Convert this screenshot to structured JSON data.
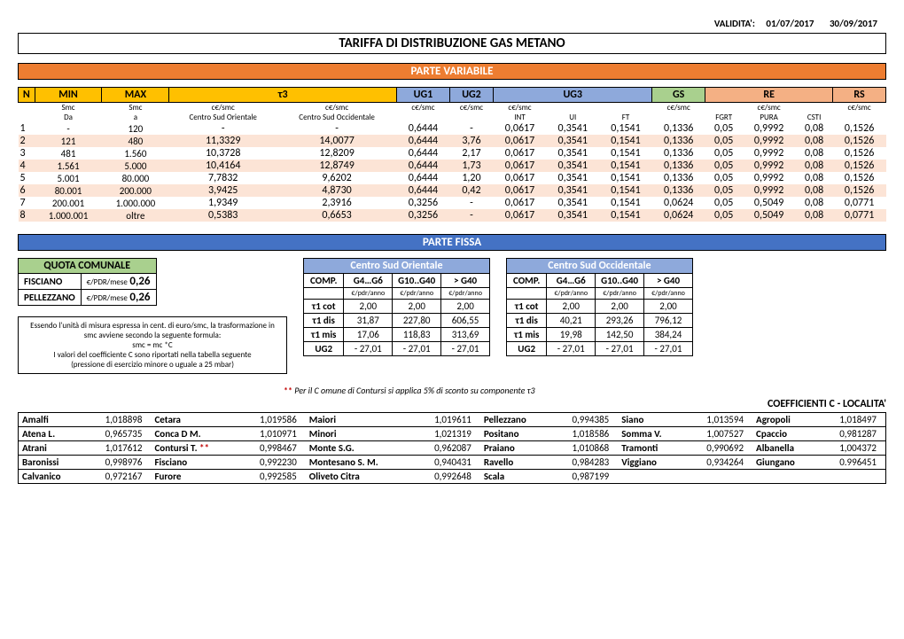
{
  "validita": {
    "label": "VALIDITA':",
    "from": "01/07/2017",
    "to": "30/09/2017"
  },
  "title": "TARIFFA DI DISTRIBUZIONE GAS METANO",
  "parte_variabile": {
    "heading": "PARTE VARIABILE",
    "cols": [
      "N",
      "MIN",
      "MAX",
      "τ3",
      "",
      "UG1",
      "UG2",
      "UG3",
      "",
      "",
      "GS",
      "",
      "RE",
      "",
      "RS"
    ],
    "units_row": [
      "",
      "Smc",
      "Smc",
      "c€/smc",
      "c€/smc",
      "c€/smc",
      "c€/smc",
      "c€/smc",
      "",
      "",
      "c€/smc",
      "",
      "c€/smc",
      "",
      "c€/smc"
    ],
    "sub_row": [
      "",
      "Da",
      "a",
      "Centro Sud Orientale",
      "Centro Sud Occidentale",
      "",
      "",
      "INT",
      "UI",
      "FT",
      "",
      "FGRT",
      "PURA",
      "CSTI",
      ""
    ],
    "rows": [
      {
        "n": "1",
        "min": "-",
        "max": "120",
        "t3a": "-",
        "t3b": "-",
        "ug1": "0,6444",
        "ug2": "-",
        "int": "0,0617",
        "ui": "0,3541",
        "ft": "0,1541",
        "gs": "0,1336",
        "fgrt": "0,05",
        "pura": "0,9992",
        "csti": "0,08",
        "rs": "0,1526"
      },
      {
        "n": "2",
        "min": "121",
        "max": "480",
        "t3a": "11,3329",
        "t3b": "14,0077",
        "ug1": "0,6444",
        "ug2": "3,76",
        "int": "0,0617",
        "ui": "0,3541",
        "ft": "0,1541",
        "gs": "0,1336",
        "fgrt": "0,05",
        "pura": "0,9992",
        "csti": "0,08",
        "rs": "0,1526"
      },
      {
        "n": "3",
        "min": "481",
        "max": "1.560",
        "t3a": "10,3728",
        "t3b": "12,8209",
        "ug1": "0,6444",
        "ug2": "2,17",
        "int": "0,0617",
        "ui": "0,3541",
        "ft": "0,1541",
        "gs": "0,1336",
        "fgrt": "0,05",
        "pura": "0,9992",
        "csti": "0,08",
        "rs": "0,1526"
      },
      {
        "n": "4",
        "min": "1.561",
        "max": "5.000",
        "t3a": "10,4164",
        "t3b": "12,8749",
        "ug1": "0,6444",
        "ug2": "1,73",
        "int": "0,0617",
        "ui": "0,3541",
        "ft": "0,1541",
        "gs": "0,1336",
        "fgrt": "0,05",
        "pura": "0,9992",
        "csti": "0,08",
        "rs": "0,1526"
      },
      {
        "n": "5",
        "min": "5.001",
        "max": "80.000",
        "t3a": "7,7832",
        "t3b": "9,6202",
        "ug1": "0,6444",
        "ug2": "1,20",
        "int": "0,0617",
        "ui": "0,3541",
        "ft": "0,1541",
        "gs": "0,1336",
        "fgrt": "0,05",
        "pura": "0,9992",
        "csti": "0,08",
        "rs": "0,1526"
      },
      {
        "n": "6",
        "min": "80.001",
        "max": "200.000",
        "t3a": "3,9425",
        "t3b": "4,8730",
        "ug1": "0,6444",
        "ug2": "0,42",
        "int": "0,0617",
        "ui": "0,3541",
        "ft": "0,1541",
        "gs": "0,1336",
        "fgrt": "0,05",
        "pura": "0,9992",
        "csti": "0,08",
        "rs": "0,1526"
      },
      {
        "n": "7",
        "min": "200.001",
        "max": "1.000.000",
        "t3a": "1,9349",
        "t3b": "2,3916",
        "ug1": "0,3256",
        "ug2": "-",
        "int": "0,0617",
        "ui": "0,3541",
        "ft": "0,1541",
        "gs": "0,0624",
        "fgrt": "0,05",
        "pura": "0,5049",
        "csti": "0,08",
        "rs": "0,0771"
      },
      {
        "n": "8",
        "min": "1.000.001",
        "max": "oltre",
        "t3a": "0,5383",
        "t3b": "0,6653",
        "ug1": "0,3256",
        "ug2": "-",
        "int": "0,0617",
        "ui": "0,3541",
        "ft": "0,1541",
        "gs": "0,0624",
        "fgrt": "0,05",
        "pura": "0,5049",
        "csti": "0,08",
        "rs": "0,0771"
      }
    ]
  },
  "parte_fissa": {
    "heading": "PARTE FISSA",
    "quota": {
      "title": "QUOTA COMUNALE",
      "rows": [
        {
          "name": "FISCIANO",
          "unit": "€/PDR/mese",
          "val": "0,26"
        },
        {
          "name": "PELLEZZANO",
          "unit": "€/PDR/mese",
          "val": "0,26"
        }
      ]
    },
    "note": "Essendo l'unità di misura espressa in cent. di euro/smc, la trasformazione in smc avviene secondo la seguente formula:\nsmc = mc *C\nI valori del coefficiente C sono riportati nella tabella seguente\n(pressione di esercizio minore o uguale a 25 mbar)",
    "cso_title": "Centro Sud Orientale",
    "cso2_title": "Centro Sud Occidentale",
    "comp_hdr": [
      "COMP.",
      "G4…G6",
      "G10..G40",
      "> G40"
    ],
    "comp_unit": "€/pdr/anno",
    "cso_rows": [
      {
        "lab": "τ1 cot",
        "a": "2,00",
        "b": "2,00",
        "c": "2,00"
      },
      {
        "lab": "τ1 dis",
        "a": "31,87",
        "b": "227,80",
        "c": "606,55"
      },
      {
        "lab": "τ1 mis",
        "a": "17,06",
        "b": "118,83",
        "c": "313,69"
      },
      {
        "lab": "UG2",
        "a": "-    27,01",
        "b": "-    27,01",
        "c": "-    27,01"
      }
    ],
    "cso2_rows": [
      {
        "lab": "τ1 cot",
        "a": "2,00",
        "b": "2,00",
        "c": "2,00"
      },
      {
        "lab": "τ1 dis",
        "a": "40,21",
        "b": "293,26",
        "c": "796,12"
      },
      {
        "lab": "τ1 mis",
        "a": "19,98",
        "b": "142,50",
        "c": "384,24"
      },
      {
        "lab": "UG2",
        "a": "-    27,01",
        "b": "-    27,01",
        "c": "-    27,01"
      }
    ]
  },
  "footnote": {
    "pre": "** ",
    "text": "Per il C omune di Contursi  si applica  5% di sconto  su componente  τ3"
  },
  "coeff_title": "COEFFICIENTI C - LOCALITA'",
  "coeff_rows": [
    [
      {
        "n": "Amalfi",
        "v": "1,018898"
      },
      {
        "n": "Cetara",
        "v": "1,019586"
      },
      {
        "n": "Maiori",
        "v": "1,019611"
      },
      {
        "n": "Pellezzano",
        "v": "0,994385"
      },
      {
        "n": "Siano",
        "v": "1,013594"
      },
      {
        "n": "Agropoli",
        "v": "1,018497"
      }
    ],
    [
      {
        "n": "Atena L.",
        "v": "0,965735"
      },
      {
        "n": "Conca D M.",
        "v": "1,010971"
      },
      {
        "n": "Minori",
        "v": "1,021319"
      },
      {
        "n": "Positano",
        "v": "1,018586"
      },
      {
        "n": "Somma V.",
        "v": "1,007527"
      },
      {
        "n": "Cpaccio",
        "v": "0,981287"
      }
    ],
    [
      {
        "n": "Atrani",
        "v": "1,017612"
      },
      {
        "n": "Contursi T. **",
        "v": "0,998467",
        "red": true
      },
      {
        "n": "Monte S.G.",
        "v": "0,962087"
      },
      {
        "n": "Praiano",
        "v": "1,010868"
      },
      {
        "n": "Tramonti",
        "v": "0,990692"
      },
      {
        "n": "Albanella",
        "v": "1,004372"
      }
    ],
    [
      {
        "n": "Baronissi",
        "v": "0,998976"
      },
      {
        "n": "Fisciano",
        "v": "0,992230"
      },
      {
        "n": "Montesano S. M.",
        "v": "0,940431"
      },
      {
        "n": "Ravello",
        "v": "0,984283"
      },
      {
        "n": "Viggiano",
        "v": "0,934264"
      },
      {
        "n": "Giungano",
        "v": "0.996451"
      }
    ],
    [
      {
        "n": "Calvanico",
        "v": "0,972167"
      },
      {
        "n": "Furore",
        "v": "0,992585"
      },
      {
        "n": "Oliveto Citra",
        "v": "0,992648"
      },
      {
        "n": "Scala",
        "v": "0,987199"
      },
      {
        "n": "",
        "v": ""
      },
      {
        "n": "",
        "v": ""
      }
    ]
  ]
}
